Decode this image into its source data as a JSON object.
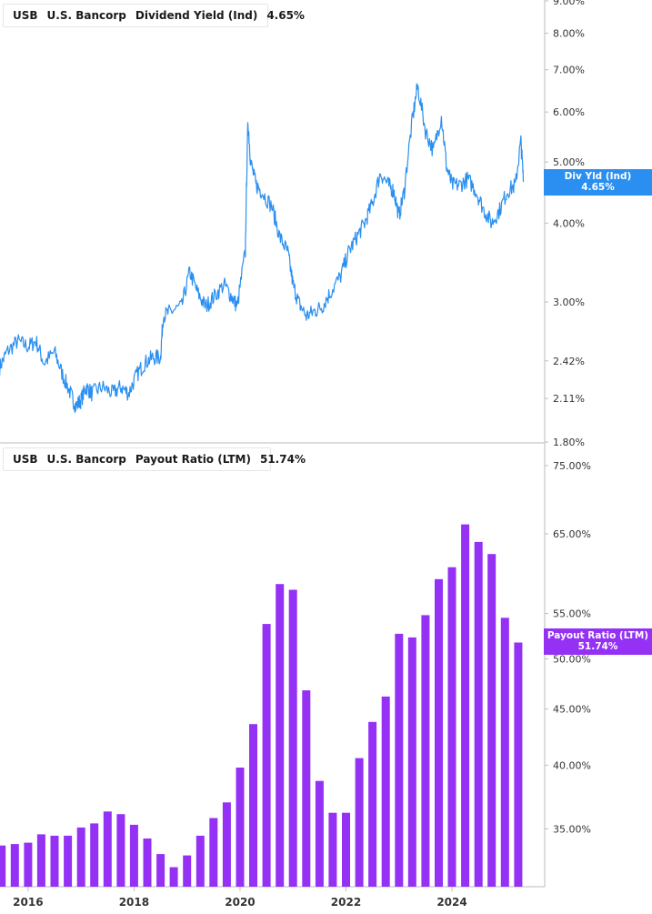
{
  "colors": {
    "yield_line": "#2a8ff0",
    "payout_bar": "#9431f5",
    "axis": "#bbbbbb"
  },
  "legend_top": {
    "ticker": "USB",
    "company": "U.S. Bancorp",
    "metric": "Dividend Yield (Ind)",
    "value": "4.65%"
  },
  "legend_bottom": {
    "ticker": "USB",
    "company": "U.S. Bancorp",
    "metric": "Payout Ratio (LTM)",
    "value": "51.74%"
  },
  "tag_top": {
    "label": "Div Yld (Ind)",
    "value": "4.65%"
  },
  "tag_bottom": {
    "label": "Payout Ratio (LTM)",
    "value": "51.74%"
  },
  "chart_data": [
    {
      "type": "line",
      "title": "USB U.S. Bancorp Dividend Yield (Ind)",
      "scale": "log",
      "ylim": [
        1.8,
        9.0
      ],
      "y_ticks": [
        "9.00%",
        "8.00%",
        "7.00%",
        "6.00%",
        "5.00%",
        "4.00%",
        "3.00%",
        "2.42%",
        "2.11%",
        "1.80%"
      ],
      "y_tick_values": [
        9.0,
        8.0,
        7.0,
        6.0,
        5.0,
        4.0,
        3.0,
        2.42,
        2.11,
        1.8
      ],
      "last_value": 4.65,
      "series": [
        {
          "name": "Dividend Yield (Ind)",
          "x": [
            2015.45,
            2015.6,
            2015.8,
            2016.0,
            2016.15,
            2016.3,
            2016.5,
            2016.65,
            2016.8,
            2016.9,
            2017.0,
            2017.1,
            2017.2,
            2017.4,
            2017.6,
            2017.75,
            2017.9,
            2018.05,
            2018.2,
            2018.35,
            2018.5,
            2018.55,
            2018.7,
            2018.9,
            2019.05,
            2019.2,
            2019.35,
            2019.5,
            2019.7,
            2019.85,
            2019.95,
            2020.1,
            2020.15,
            2020.2,
            2020.3,
            2020.4,
            2020.6,
            2020.75,
            2020.9,
            2021.0,
            2021.1,
            2021.25,
            2021.4,
            2021.55,
            2021.7,
            2021.9,
            2022.05,
            2022.2,
            2022.35,
            2022.5,
            2022.65,
            2022.8,
            2022.9,
            2023.0,
            2023.1,
            2023.25,
            2023.35,
            2023.5,
            2023.65,
            2023.8,
            2023.9,
            2024.0,
            2024.15,
            2024.3,
            2024.45,
            2024.6,
            2024.75,
            2024.9,
            2025.05,
            2025.2,
            2025.3,
            2025.35
          ],
          "y": [
            2.35,
            2.5,
            2.6,
            2.55,
            2.6,
            2.4,
            2.5,
            2.3,
            2.15,
            2.05,
            2.1,
            2.2,
            2.15,
            2.2,
            2.15,
            2.2,
            2.15,
            2.3,
            2.4,
            2.45,
            2.45,
            2.85,
            2.9,
            2.95,
            3.35,
            3.1,
            2.95,
            3.05,
            3.2,
            3.05,
            2.95,
            3.6,
            5.8,
            5.0,
            4.6,
            4.5,
            4.25,
            3.8,
            3.6,
            3.2,
            3.0,
            2.85,
            2.9,
            2.95,
            3.1,
            3.3,
            3.6,
            3.8,
            4.0,
            4.3,
            4.8,
            4.6,
            4.5,
            4.1,
            4.5,
            5.8,
            6.6,
            5.6,
            5.2,
            5.9,
            4.9,
            4.6,
            4.6,
            4.7,
            4.5,
            4.2,
            4.0,
            4.2,
            4.5,
            4.6,
            5.4,
            4.65
          ]
        }
      ]
    },
    {
      "type": "bar",
      "title": "USB U.S. Bancorp Payout Ratio (LTM)",
      "scale": "log",
      "ylim": [
        31.0,
        76.0
      ],
      "y_ticks": [
        "75.00%",
        "65.00%",
        "55.00%",
        "50.00%",
        "45.00%",
        "40.00%",
        "35.00%"
      ],
      "y_tick_values": [
        75.0,
        65.0,
        55.0,
        50.0,
        45.0,
        40.0,
        35.0
      ],
      "x_ticks": [
        "2016",
        "2018",
        "2020",
        "2022",
        "2024"
      ],
      "x_tick_values": [
        2016.0,
        2018.0,
        2020.0,
        2022.0,
        2024.0
      ],
      "last_value": 51.74,
      "series": [
        {
          "name": "Payout Ratio (LTM)",
          "x": [
            2015.5,
            2015.75,
            2016.0,
            2016.25,
            2016.5,
            2016.75,
            2017.0,
            2017.25,
            2017.5,
            2017.75,
            2018.0,
            2018.25,
            2018.5,
            2018.75,
            2019.0,
            2019.25,
            2019.5,
            2019.75,
            2020.0,
            2020.25,
            2020.5,
            2020.75,
            2021.0,
            2021.25,
            2021.5,
            2021.75,
            2022.0,
            2022.25,
            2022.5,
            2022.75,
            2023.0,
            2023.25,
            2023.5,
            2023.75,
            2024.0,
            2024.25,
            2024.5,
            2024.75,
            2025.0,
            2025.25
          ],
          "y": [
            33.8,
            33.9,
            34.0,
            34.6,
            34.5,
            34.5,
            35.1,
            35.4,
            36.3,
            36.1,
            35.3,
            34.3,
            33.2,
            32.3,
            33.1,
            34.5,
            35.8,
            37.0,
            39.8,
            43.6,
            53.8,
            58.5,
            57.8,
            46.8,
            38.7,
            36.2,
            36.2,
            40.6,
            43.8,
            46.2,
            52.7,
            52.3,
            54.8,
            59.1,
            60.6,
            66.3,
            63.9,
            62.3,
            54.5,
            51.74
          ]
        }
      ]
    }
  ]
}
